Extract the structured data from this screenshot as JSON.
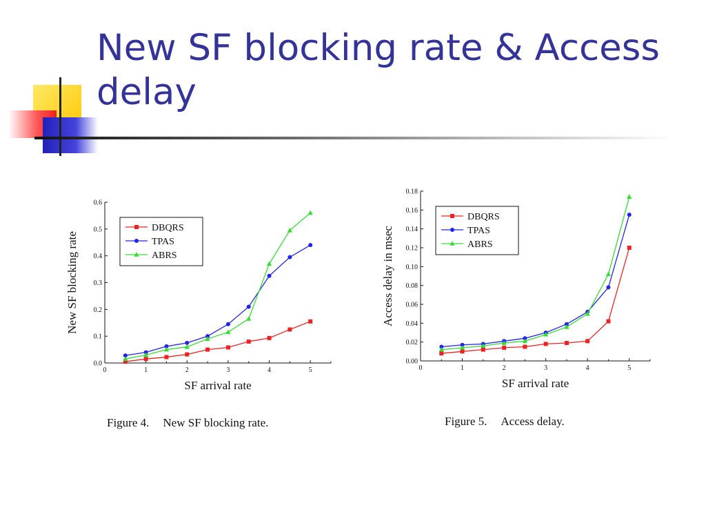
{
  "slide": {
    "title": "New SF blocking rate & Access delay",
    "accent_colors": {
      "title": "#333399",
      "yellow": "#FFD800",
      "red": "#FF3333",
      "blue": "#3333CC"
    }
  },
  "chart_data": [
    {
      "type": "line",
      "caption_number": "Figure 4.",
      "caption_text": "New SF blocking rate.",
      "xlabel": "SF arrival rate",
      "ylabel": "New SF blocking rate",
      "xlim": [
        0,
        5.5
      ],
      "ylim": [
        0,
        0.6
      ],
      "xticks": [
        "0",
        "1",
        "2",
        "3",
        "4",
        "5"
      ],
      "yticks": [
        "0.0",
        "0.1",
        "0.2",
        "0.3",
        "0.4",
        "0.5",
        "0.6"
      ],
      "x": [
        0.5,
        1,
        1.5,
        2,
        2.5,
        3,
        3.5,
        4,
        4.5,
        5
      ],
      "legend_position": "top-left",
      "series": [
        {
          "name": "DBQRS",
          "color": "#ee2222",
          "marker": "square",
          "values": [
            0.005,
            0.015,
            0.022,
            0.032,
            0.05,
            0.058,
            0.08,
            0.093,
            0.125,
            0.155
          ]
        },
        {
          "name": "TPAS",
          "color": "#2222ee",
          "marker": "circle",
          "values": [
            0.028,
            0.04,
            0.062,
            0.075,
            0.1,
            0.145,
            0.21,
            0.325,
            0.395,
            0.44
          ]
        },
        {
          "name": "ABRS",
          "color": "#33dd33",
          "marker": "triangle",
          "values": [
            0.015,
            0.03,
            0.05,
            0.06,
            0.09,
            0.115,
            0.165,
            0.37,
            0.495,
            0.56
          ]
        }
      ]
    },
    {
      "type": "line",
      "caption_number": "Figure 5.",
      "caption_text": "Access delay.",
      "xlabel": "SF arrival rate",
      "ylabel": "Access delay in msec",
      "xlim": [
        0,
        5.5
      ],
      "ylim": [
        0,
        0.18
      ],
      "xticks": [
        "0",
        "1",
        "2",
        "3",
        "4",
        "5"
      ],
      "yticks": [
        "0.00",
        "0.02",
        "0.04",
        "0.06",
        "0.08",
        "0.10",
        "0.12",
        "0.14",
        "0.16",
        "0.18"
      ],
      "x": [
        0.5,
        1,
        1.5,
        2,
        2.5,
        3,
        3.5,
        4,
        4.5,
        5
      ],
      "legend_position": "top-left",
      "series": [
        {
          "name": "DBQRS",
          "color": "#ee2222",
          "marker": "square",
          "values": [
            0.008,
            0.01,
            0.012,
            0.014,
            0.015,
            0.018,
            0.019,
            0.021,
            0.042,
            0.12
          ]
        },
        {
          "name": "TPAS",
          "color": "#2222ee",
          "marker": "circle",
          "values": [
            0.015,
            0.017,
            0.018,
            0.021,
            0.024,
            0.03,
            0.039,
            0.052,
            0.078,
            0.155
          ]
        },
        {
          "name": "ABRS",
          "color": "#33dd33",
          "marker": "triangle",
          "values": [
            0.012,
            0.014,
            0.016,
            0.019,
            0.021,
            0.028,
            0.036,
            0.05,
            0.092,
            0.174
          ]
        }
      ]
    }
  ]
}
